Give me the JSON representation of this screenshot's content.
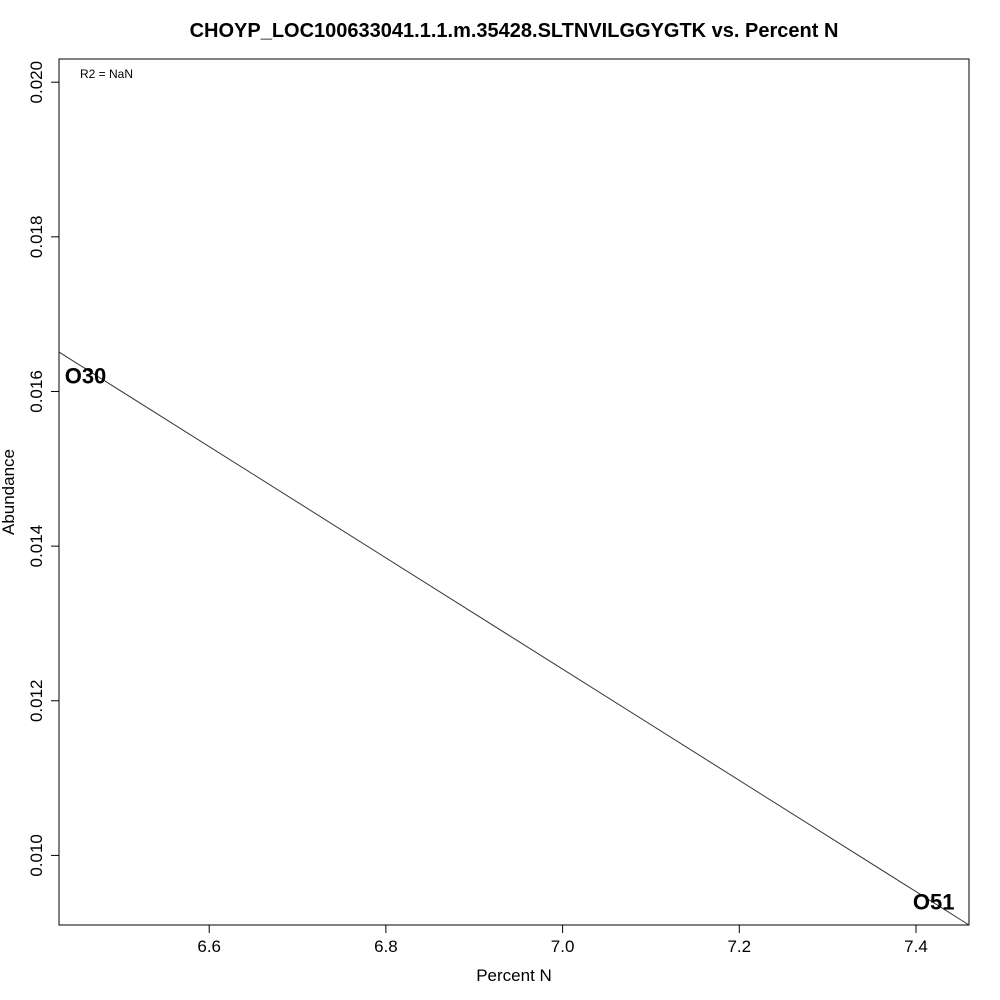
{
  "chart_data": {
    "type": "scatter",
    "title": "CHOYP_LOC100633041.1.1.m.35428.SLTNVILGGYGTK vs. Percent N",
    "xlabel": "Percent N",
    "ylabel": "Abundance",
    "annotation": "R2 = NaN",
    "xlim": [
      6.43,
      7.46
    ],
    "ylim": [
      0.0091,
      0.0203
    ],
    "x_ticks": [
      6.6,
      6.8,
      7.0,
      7.2,
      7.4
    ],
    "x_tick_labels": [
      "6.6",
      "6.8",
      "7.0",
      "7.2",
      "7.4"
    ],
    "y_ticks": [
      0.01,
      0.012,
      0.014,
      0.016,
      0.018,
      0.02
    ],
    "y_tick_labels": [
      "0.010",
      "0.012",
      "0.014",
      "0.016",
      "0.018",
      "0.020"
    ],
    "points": [
      {
        "label": "O30",
        "x": 6.46,
        "y": 0.0162
      },
      {
        "label": "O51",
        "x": 7.42,
        "y": 0.0094
      }
    ],
    "fit_line": {
      "x": [
        6.43,
        7.46
      ],
      "y": [
        0.01651,
        0.0091
      ]
    },
    "grid": false
  }
}
